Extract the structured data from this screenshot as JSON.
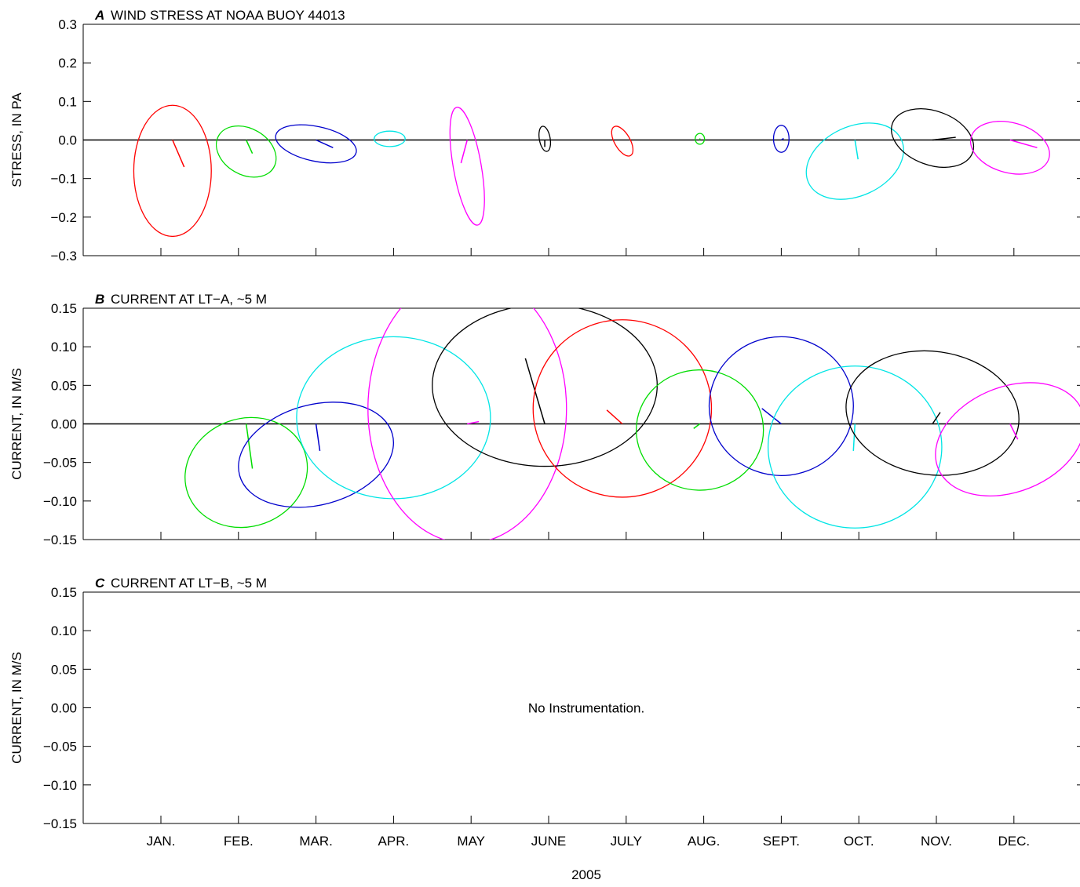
{
  "chart_data": [
    {
      "type": "scatter",
      "panel_letter": "A",
      "title": "WIND STRESS AT NOAA BUOY 44013",
      "ylabel": "STRESS, IN PA",
      "ylim": [
        -0.3,
        0.3
      ],
      "yticks": [
        0.3,
        0.2,
        0.1,
        0.0,
        -0.1,
        -0.2,
        -0.3
      ],
      "ytick_labels": [
        "0.3",
        "0.2",
        "0.1",
        "0.0",
        "−0.1",
        "−0.2",
        "−0.3"
      ],
      "xlim": [
        0,
        12
      ],
      "zero_line": true,
      "note": "",
      "series": [
        {
          "month_index": 0.15,
          "color": "#ff0000",
          "ellipse": {
            "cx": 0.15,
            "cy": -0.08,
            "rx": 0.5,
            "ry": 0.17,
            "angle": 0
          },
          "vector": {
            "u": 0.15,
            "v": -0.07
          }
        },
        {
          "month_index": 1.1,
          "color": "#00dd00",
          "ellipse": {
            "cx": 1.1,
            "cy": -0.03,
            "rx": 0.41,
            "ry": 0.06,
            "angle": 30
          },
          "vector": {
            "u": 0.08,
            "v": -0.035
          }
        },
        {
          "month_index": 2.0,
          "color": "#0000cc",
          "ellipse": {
            "cx": 2.0,
            "cy": -0.01,
            "rx": 0.53,
            "ry": 0.045,
            "angle": 12
          },
          "vector": {
            "u": 0.22,
            "v": -0.02
          }
        },
        {
          "month_index": 2.95,
          "color": "#00e5e5",
          "ellipse": {
            "cx": 2.95,
            "cy": 0.003,
            "rx": 0.2,
            "ry": 0.02,
            "angle": 0
          },
          "vector": {
            "u": 0.0,
            "v": 0.003
          }
        },
        {
          "month_index": 3.95,
          "color": "#ff00ff",
          "ellipse": {
            "cx": 3.95,
            "cy": -0.068,
            "rx": 0.18,
            "ry": 0.155,
            "angle": -10
          },
          "vector": {
            "u": -0.08,
            "v": -0.06
          }
        },
        {
          "month_index": 4.95,
          "color": "#000000",
          "ellipse": {
            "cx": 4.95,
            "cy": 0.003,
            "rx": 0.07,
            "ry": 0.033,
            "angle": -10
          },
          "vector": {
            "u": 0.0,
            "v": -0.018
          }
        },
        {
          "month_index": 5.95,
          "color": "#ff0000",
          "ellipse": {
            "cx": 5.95,
            "cy": -0.003,
            "rx": 0.1,
            "ry": 0.043,
            "angle": -30
          },
          "vector": {
            "u": 0.0,
            "v": 0.0
          }
        },
        {
          "month_index": 6.95,
          "color": "#00dd00",
          "ellipse": {
            "cx": 6.95,
            "cy": 0.003,
            "rx": 0.06,
            "ry": 0.014,
            "angle": 0
          },
          "vector": {
            "u": 0.0,
            "v": 0.004
          }
        },
        {
          "month_index": 8.0,
          "color": "#0000cc",
          "ellipse": {
            "cx": 8.0,
            "cy": 0.003,
            "rx": 0.1,
            "ry": 0.035,
            "angle": 0
          },
          "vector": {
            "u": 0.03,
            "v": 0.004
          }
        },
        {
          "month_index": 8.95,
          "color": "#00e5e5",
          "ellipse": {
            "cx": 8.95,
            "cy": -0.055,
            "rx": 0.66,
            "ry": 0.09,
            "angle": -25
          },
          "vector": {
            "u": 0.04,
            "v": -0.05
          }
        },
        {
          "month_index": 9.95,
          "color": "#000000",
          "ellipse": {
            "cx": 9.95,
            "cy": 0.005,
            "rx": 0.55,
            "ry": 0.07,
            "angle": 20
          },
          "vector": {
            "u": 0.3,
            "v": 0.007
          }
        },
        {
          "month_index": 10.95,
          "color": "#ff00ff",
          "ellipse": {
            "cx": 10.95,
            "cy": -0.02,
            "rx": 0.52,
            "ry": 0.065,
            "angle": 15
          },
          "vector": {
            "u": 0.35,
            "v": -0.02
          }
        }
      ]
    },
    {
      "type": "scatter",
      "panel_letter": "B",
      "title": "CURRENT AT LT−A, ~5 M",
      "ylabel": "CURRENT, IN M/S",
      "ylim": [
        -0.15,
        0.15
      ],
      "yticks": [
        0.15,
        0.1,
        0.05,
        0.0,
        -0.05,
        -0.1,
        -0.15
      ],
      "ytick_labels": [
        "0.15",
        "0.10",
        "0.05",
        "0.00",
        "−0.05",
        "−0.10",
        "−0.15"
      ],
      "xlim": [
        0,
        12
      ],
      "zero_line": true,
      "note": "",
      "series": [
        {
          "month_index": 1.1,
          "color": "#00dd00",
          "ellipse": {
            "cx": 1.1,
            "cy": -0.063,
            "rx": 0.8,
            "ry": 0.07,
            "angle": -20
          },
          "vector": {
            "u": 0.08,
            "v": -0.058
          }
        },
        {
          "month_index": 2.0,
          "color": "#0000cc",
          "ellipse": {
            "cx": 2.0,
            "cy": -0.04,
            "rx": 1.02,
            "ry": 0.065,
            "angle": -15
          },
          "vector": {
            "u": 0.05,
            "v": -0.035
          }
        },
        {
          "month_index": 3.0,
          "color": "#00e5e5",
          "ellipse": {
            "cx": 3.0,
            "cy": 0.008,
            "rx": 1.25,
            "ry": 0.105,
            "angle": 0
          },
          "vector": {
            "u": 0.0,
            "v": 0.0
          }
        },
        {
          "month_index": 3.95,
          "color": "#ff00ff",
          "ellipse": {
            "cx": 3.95,
            "cy": 0.02,
            "rx": 1.28,
            "ry": 0.175,
            "angle": 0
          },
          "vector": {
            "u": 0.15,
            "v": 0.003
          }
        },
        {
          "month_index": 4.95,
          "color": "#000000",
          "ellipse": {
            "cx": 4.95,
            "cy": 0.05,
            "rx": 1.45,
            "ry": 0.105,
            "angle": 0
          },
          "vector": {
            "u": -0.25,
            "v": 0.085
          }
        },
        {
          "month_index": 5.95,
          "color": "#ff0000",
          "ellipse": {
            "cx": 5.95,
            "cy": 0.02,
            "rx": 1.15,
            "ry": 0.115,
            "angle": 0
          },
          "vector": {
            "u": -0.2,
            "v": 0.018
          }
        },
        {
          "month_index": 6.95,
          "color": "#00dd00",
          "ellipse": {
            "cx": 6.95,
            "cy": -0.008,
            "rx": 0.82,
            "ry": 0.078,
            "angle": 0
          },
          "vector": {
            "u": -0.08,
            "v": -0.006
          }
        },
        {
          "month_index": 8.0,
          "color": "#0000cc",
          "ellipse": {
            "cx": 8.0,
            "cy": 0.023,
            "rx": 0.93,
            "ry": 0.09,
            "angle": 0
          },
          "vector": {
            "u": -0.25,
            "v": 0.02
          }
        },
        {
          "month_index": 8.95,
          "color": "#00e5e5",
          "ellipse": {
            "cx": 8.95,
            "cy": -0.03,
            "rx": 1.12,
            "ry": 0.105,
            "angle": 0
          },
          "vector": {
            "u": -0.02,
            "v": -0.035
          }
        },
        {
          "month_index": 9.95,
          "color": "#000000",
          "ellipse": {
            "cx": 9.95,
            "cy": 0.014,
            "rx": 1.12,
            "ry": 0.08,
            "angle": 8
          },
          "vector": {
            "u": 0.1,
            "v": 0.015
          }
        },
        {
          "month_index": 10.95,
          "color": "#ff00ff",
          "ellipse": {
            "cx": 10.95,
            "cy": -0.02,
            "rx": 1.0,
            "ry": 0.068,
            "angle": -22
          },
          "vector": {
            "u": 0.1,
            "v": -0.02
          }
        }
      ]
    },
    {
      "type": "scatter",
      "panel_letter": "C",
      "title": "CURRENT AT LT−B, ~5 M",
      "ylabel": "CURRENT, IN M/S",
      "ylim": [
        -0.15,
        0.15
      ],
      "yticks": [
        0.15,
        0.1,
        0.05,
        0.0,
        -0.05,
        -0.1,
        -0.15
      ],
      "ytick_labels": [
        "0.15",
        "0.10",
        "0.05",
        "0.00",
        "−0.05",
        "−0.10",
        "−0.15"
      ],
      "xlim": [
        0,
        12
      ],
      "zero_line": false,
      "note": "No Instrumentation.",
      "series": []
    }
  ],
  "x_axis": {
    "categories": [
      "JAN.",
      "FEB.",
      "MAR.",
      "APR.",
      "MAY",
      "JUNE",
      "JULY",
      "AUG.",
      "SEPT.",
      "OCT.",
      "NOV.",
      "DEC."
    ],
    "xlabel": "2005"
  }
}
